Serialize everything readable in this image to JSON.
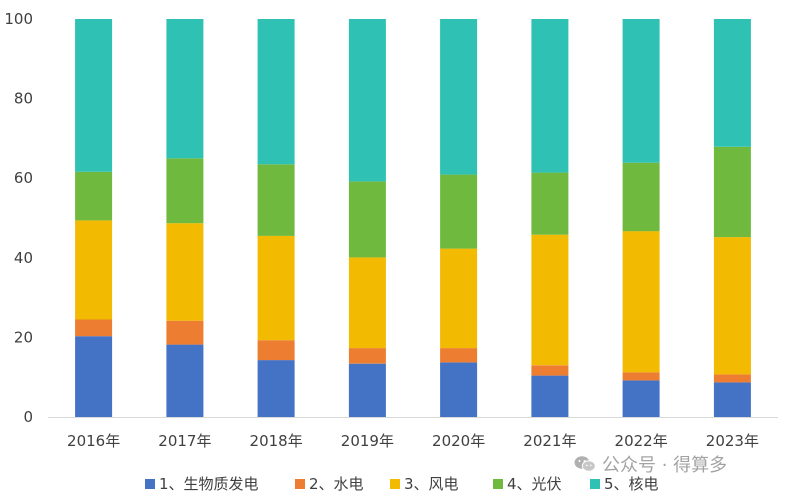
{
  "chart_data": {
    "type": "bar",
    "stacked": true,
    "categories": [
      "2016年",
      "2017年",
      "2018年",
      "2019年",
      "2020年",
      "2021年",
      "2022年",
      "2023年"
    ],
    "ylim": [
      0,
      100
    ],
    "yticks": [
      "0",
      "20",
      "40",
      "60",
      "80",
      "100"
    ],
    "grid": false,
    "legend_position": "bottom",
    "series": [
      {
        "name": "1、生物质发电",
        "color": "#4472C4",
        "values": [
          20.3,
          18.2,
          14.3,
          13.4,
          13.7,
          10.4,
          9.2,
          8.7
        ]
      },
      {
        "name": "2、水电",
        "color": "#ED7D31",
        "values": [
          4.2,
          6.0,
          5.0,
          3.9,
          3.6,
          2.6,
          2.0,
          2.0
        ]
      },
      {
        "name": "3、风电",
        "color": "#F2BA00",
        "values": [
          24.9,
          24.5,
          26.2,
          22.8,
          25.0,
          32.8,
          35.5,
          34.5
        ]
      },
      {
        "name": "4、光伏",
        "color": "#70B93F",
        "values": [
          12.2,
          16.3,
          18.0,
          19.1,
          18.6,
          15.6,
          17.2,
          22.7
        ]
      },
      {
        "name": "5、核电",
        "color": "#2EC1B4",
        "values": [
          38.4,
          35.0,
          36.5,
          40.8,
          39.1,
          38.6,
          36.1,
          32.1
        ]
      }
    ]
  },
  "watermark": {
    "icon": "wechat-icon",
    "text": "公众号 · 得算多"
  }
}
